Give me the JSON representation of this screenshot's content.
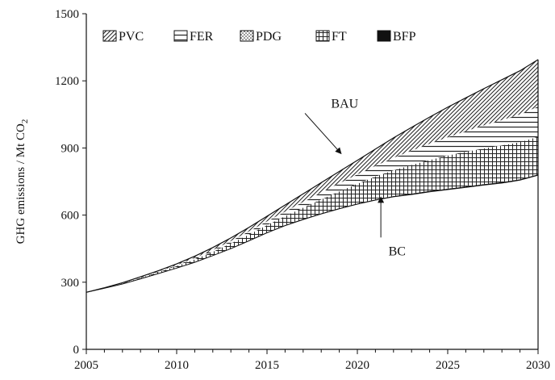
{
  "chart_data": {
    "type": "area",
    "title": "",
    "xlabel": "",
    "ylabel": "GHG emissions / Mt CO",
    "ylabel_subscript": "2",
    "xlim": [
      2005,
      2030
    ],
    "ylim": [
      0,
      1500
    ],
    "x_ticks": [
      "2005",
      "2010",
      "2015",
      "2020",
      "2025",
      "2030"
    ],
    "y_ticks": [
      "0",
      "300",
      "600",
      "900",
      "1200",
      "1500"
    ],
    "legend_position": "top-left",
    "x": [
      2005,
      2006,
      2007,
      2008,
      2009,
      2010,
      2011,
      2012,
      2013,
      2014,
      2015,
      2016,
      2017,
      2018,
      2019,
      2020,
      2021,
      2022,
      2023,
      2024,
      2025,
      2026,
      2027,
      2028,
      2029,
      2030
    ],
    "bau": [
      255,
      275,
      298,
      324,
      352,
      382,
      416,
      455,
      498,
      545,
      595,
      645,
      695,
      745,
      795,
      845,
      895,
      945,
      992,
      1038,
      1082,
      1124,
      1165,
      1205,
      1245,
      1295
    ],
    "stacks": [
      {
        "name": "BFP",
        "values": [
          0,
          0,
          1,
          1,
          1,
          1,
          1,
          1,
          2,
          2,
          2,
          2,
          3,
          3,
          3,
          3,
          3,
          3,
          4,
          4,
          4,
          4,
          4,
          4,
          4,
          4
        ]
      },
      {
        "name": "FT",
        "values": [
          0,
          1,
          2,
          3,
          5,
          8,
          12,
          16,
          21,
          26,
          32,
          40,
          50,
          62,
          75,
          88,
          102,
          115,
          128,
          138,
          148,
          155,
          160,
          164,
          166,
          168
        ]
      },
      {
        "name": "PDG",
        "values": [
          0,
          0,
          0,
          0,
          0,
          0,
          0,
          0,
          0,
          0,
          0,
          0,
          0,
          0,
          0,
          0,
          0,
          0,
          0,
          0,
          0,
          0,
          0,
          0,
          0,
          0
        ]
      },
      {
        "name": "FER",
        "values": [
          0,
          0,
          1,
          2,
          3,
          4,
          6,
          8,
          11,
          14,
          17,
          21,
          26,
          31,
          36,
          42,
          48,
          56,
          64,
          73,
          82,
          92,
          103,
          114,
          124,
          135
        ]
      },
      {
        "name": "PVC",
        "values": [
          0,
          1,
          2,
          3,
          4,
          6,
          8,
          11,
          14,
          18,
          23,
          29,
          36,
          44,
          53,
          63,
          75,
          89,
          104,
          119,
          134,
          149,
          164,
          180,
          195,
          210
        ]
      }
    ],
    "legend": [
      {
        "name": "PVC",
        "pattern": "diag"
      },
      {
        "name": "FER",
        "pattern": "hlines"
      },
      {
        "name": "PDG",
        "pattern": "dots"
      },
      {
        "name": "FT",
        "pattern": "grid"
      },
      {
        "name": "BFP",
        "pattern": "solid"
      }
    ],
    "annotations": [
      {
        "text": "BAU",
        "label_x": 2019.3,
        "label_y": 1080,
        "arrow_from_x": 2017.1,
        "arrow_from_y": 1055,
        "arrow_to_x": 2019.1,
        "arrow_to_y": 875
      },
      {
        "text": "BC",
        "label_x": 2022.2,
        "label_y": 420,
        "arrow_from_x": 2021.3,
        "arrow_from_y": 500,
        "arrow_to_x": 2021.3,
        "arrow_to_y": 680
      }
    ],
    "colors": {
      "line": "#111111",
      "background": "#ffffff",
      "bc_fill": "#ffffff"
    }
  }
}
